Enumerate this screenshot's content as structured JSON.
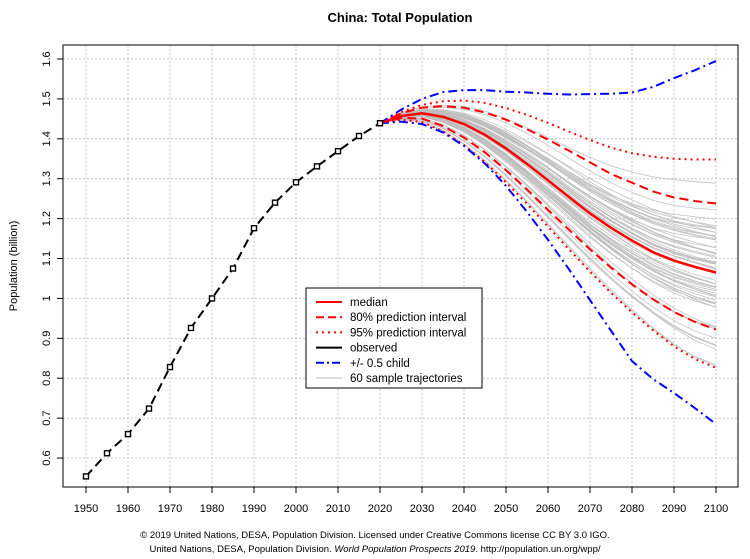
{
  "chart_data": {
    "type": "line",
    "title": "China: Total Population",
    "xlabel": "",
    "ylabel": "Population (billion)",
    "xlim": [
      1950,
      2100
    ],
    "ylim": [
      0.55,
      1.6
    ],
    "xticks": [
      "1950",
      "1960",
      "1970",
      "1980",
      "1990",
      "2000",
      "2010",
      "2020",
      "2030",
      "2040",
      "2050",
      "2060",
      "2070",
      "2080",
      "2090",
      "2100"
    ],
    "yticks": [
      "0.6",
      "0.7",
      "0.8",
      "0.9",
      "1",
      "1.1",
      "1.2",
      "1.3",
      "1.4",
      "1.5",
      "1.6"
    ],
    "grid": true,
    "legend_position": "center-left",
    "legend": [
      {
        "label": "median",
        "color": "#ff0000",
        "style": "solid"
      },
      {
        "label": "80% prediction interval",
        "color": "#ff0000",
        "style": "dashed"
      },
      {
        "label": "95% prediction interval",
        "color": "#ff0000",
        "style": "dotted"
      },
      {
        "label": "observed",
        "color": "#000000",
        "style": "solid"
      },
      {
        "label": "+/- 0.5 child",
        "color": "#0000ff",
        "style": "dashdot"
      },
      {
        "label": "60 sample trajectories",
        "color": "#bbbbbb",
        "style": "solid"
      }
    ],
    "series": [
      {
        "key": "observed",
        "x": [
          1950,
          1955,
          1960,
          1965,
          1970,
          1975,
          1980,
          1985,
          1990,
          1995,
          2000,
          2005,
          2010,
          2015,
          2020
        ],
        "values": [
          0.554,
          0.612,
          0.66,
          0.724,
          0.828,
          0.926,
          1.0,
          1.075,
          1.176,
          1.24,
          1.291,
          1.331,
          1.369,
          1.407,
          1.439
        ]
      },
      {
        "key": "median",
        "x": [
          2020,
          2025,
          2030,
          2035,
          2040,
          2045,
          2050,
          2055,
          2060,
          2065,
          2070,
          2075,
          2080,
          2085,
          2090,
          2095,
          2100
        ],
        "values": [
          1.439,
          1.457,
          1.464,
          1.455,
          1.437,
          1.41,
          1.376,
          1.337,
          1.296,
          1.254,
          1.213,
          1.177,
          1.145,
          1.116,
          1.095,
          1.079,
          1.065
        ]
      },
      {
        "key": "pi80_upper",
        "x": [
          2020,
          2025,
          2030,
          2035,
          2040,
          2045,
          2050,
          2055,
          2060,
          2065,
          2070,
          2075,
          2080,
          2085,
          2090,
          2095,
          2100
        ],
        "values": [
          1.439,
          1.464,
          1.478,
          1.482,
          1.478,
          1.466,
          1.448,
          1.424,
          1.398,
          1.37,
          1.341,
          1.312,
          1.29,
          1.268,
          1.253,
          1.244,
          1.238
        ]
      },
      {
        "key": "pi80_lower",
        "x": [
          2020,
          2025,
          2030,
          2035,
          2040,
          2045,
          2050,
          2055,
          2060,
          2065,
          2070,
          2075,
          2080,
          2085,
          2090,
          2095,
          2100
        ],
        "values": [
          1.439,
          1.452,
          1.451,
          1.432,
          1.403,
          1.366,
          1.322,
          1.273,
          1.222,
          1.172,
          1.123,
          1.077,
          1.035,
          0.998,
          0.966,
          0.941,
          0.922
        ]
      },
      {
        "key": "pi95_upper",
        "x": [
          2020,
          2025,
          2030,
          2035,
          2040,
          2045,
          2050,
          2055,
          2060,
          2065,
          2070,
          2075,
          2080,
          2085,
          2090,
          2095,
          2100
        ],
        "values": [
          1.439,
          1.467,
          1.485,
          1.494,
          1.496,
          1.49,
          1.477,
          1.46,
          1.44,
          1.418,
          1.397,
          1.378,
          1.364,
          1.355,
          1.35,
          1.348,
          1.348
        ]
      },
      {
        "key": "pi95_lower",
        "x": [
          2020,
          2025,
          2030,
          2035,
          2040,
          2045,
          2050,
          2055,
          2060,
          2065,
          2070,
          2075,
          2080,
          2085,
          2090,
          2095,
          2100
        ],
        "values": [
          1.439,
          1.448,
          1.442,
          1.419,
          1.384,
          1.341,
          1.291,
          1.237,
          1.18,
          1.123,
          1.067,
          1.014,
          0.965,
          0.92,
          0.88,
          0.848,
          0.826
        ]
      },
      {
        "key": "plus_half_child",
        "x": [
          2020,
          2025,
          2030,
          2035,
          2040,
          2045,
          2050,
          2055,
          2060,
          2065,
          2070,
          2075,
          2080,
          2085,
          2090,
          2095,
          2100
        ],
        "values": [
          1.439,
          1.473,
          1.5,
          1.517,
          1.522,
          1.522,
          1.518,
          1.516,
          1.513,
          1.511,
          1.512,
          1.513,
          1.516,
          1.53,
          1.552,
          1.572,
          1.595
        ]
      },
      {
        "key": "minus_half_child",
        "x": [
          2020,
          2025,
          2030,
          2035,
          2040,
          2045,
          2050,
          2055,
          2060,
          2065,
          2070,
          2075,
          2080,
          2085,
          2090,
          2095,
          2100
        ],
        "values": [
          1.439,
          1.443,
          1.437,
          1.416,
          1.382,
          1.338,
          1.282,
          1.217,
          1.147,
          1.073,
          0.996,
          0.919,
          0.843,
          0.798,
          0.763,
          0.725,
          0.685
        ]
      }
    ]
  },
  "footer": {
    "line1": "© 2019 United Nations, DESA, Population Division. Licensed under Creative Commons license CC BY 3.0 IGO.",
    "line2_pre": "United Nations, DESA, Population Division.",
    "line2_italic": "World Population Prospects 2019",
    "line2_post": ". http://population.un.org/wpp/"
  }
}
